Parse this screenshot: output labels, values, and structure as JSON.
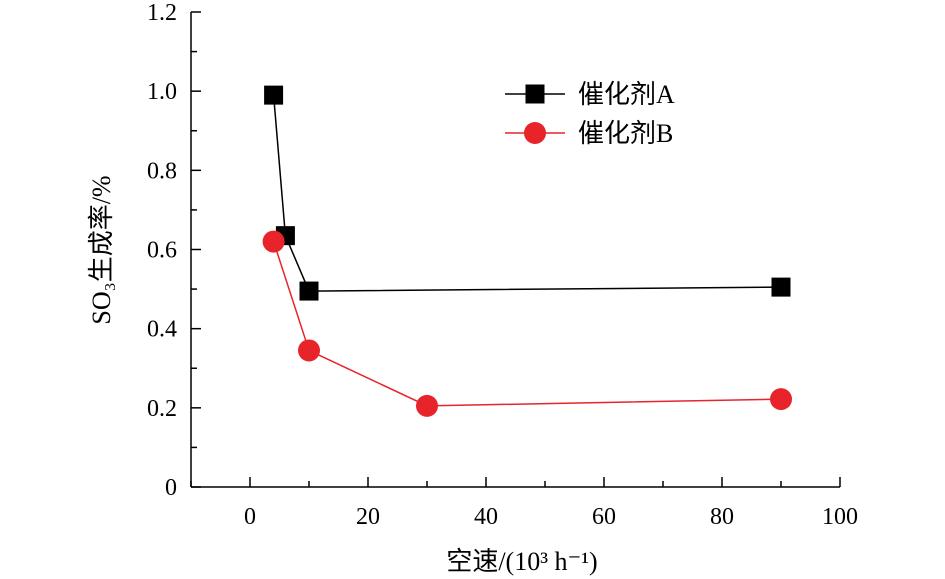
{
  "chart_data": {
    "type": "line",
    "xlabel": "空速/(10³ h⁻¹)",
    "ylabel": "SO₃生成率/%",
    "xlim": [
      -10,
      100
    ],
    "ylim": [
      0,
      1.2
    ],
    "x_ticks": [
      "0",
      "20",
      "40",
      "60",
      "80",
      "100"
    ],
    "y_ticks": [
      "0",
      "0.2",
      "0.4",
      "0.6",
      "0.8",
      "1.0",
      "1.2"
    ],
    "legend_position": "top-right",
    "grid": false,
    "series": [
      {
        "name": "催化剂A",
        "marker": "square",
        "color": "#000000",
        "x": [
          4,
          6,
          10,
          90
        ],
        "y": [
          0.99,
          0.635,
          0.495,
          0.505
        ]
      },
      {
        "name": "催化剂B",
        "marker": "circle",
        "color": "#e8242b",
        "x": [
          4,
          10,
          30,
          90
        ],
        "y": [
          0.62,
          0.345,
          0.205,
          0.222
        ]
      }
    ]
  }
}
